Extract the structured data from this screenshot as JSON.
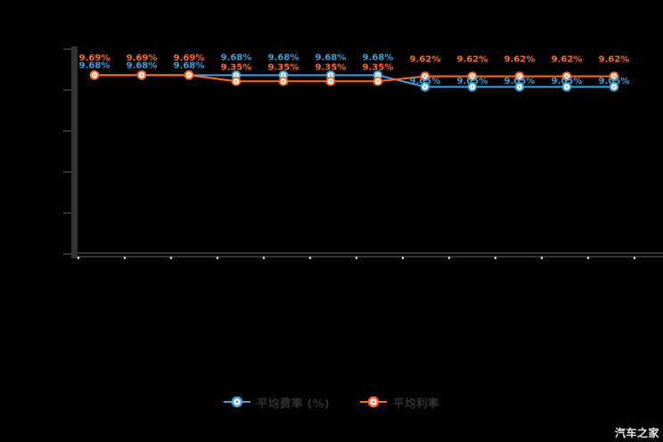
{
  "background": "#000000",
  "watermark": "汽车之家",
  "colors": {
    "blue_series": "#3fa0dc",
    "orange_series": "#ff6a1e",
    "axis": "#333333",
    "legend_text": "#333333",
    "x_tick_dot": "#ffffff",
    "watermark_text": "#e6e6e6",
    "marker_fill": "#ffffff",
    "background": "#000000"
  },
  "legend": {
    "items": [
      {
        "label": "平均费率 (%)",
        "series": "blue"
      },
      {
        "label": "平均利率",
        "series": "orange"
      }
    ]
  },
  "chart_data": {
    "type": "line",
    "title": "",
    "xlabel": "",
    "ylabel": "",
    "points": 12,
    "x_tick_labels_visible": false,
    "y_tick_labels_visible": false,
    "y_tick_count": 6,
    "x_tick_dot_count": 13,
    "ylim": [
      0,
      11.1
    ],
    "grid": false,
    "legend_position": "bottom",
    "label_suffix": "%",
    "series": [
      {
        "name": "平均费率 (%)",
        "color_key": "blue_series",
        "values": [
          9.68,
          9.68,
          9.68,
          9.68,
          9.68,
          9.68,
          9.68,
          9.05,
          9.05,
          9.05,
          9.05,
          9.05
        ]
      },
      {
        "name": "平均利率",
        "color_key": "orange_series",
        "values": [
          9.69,
          9.69,
          9.69,
          9.35,
          9.35,
          9.35,
          9.35,
          9.62,
          9.62,
          9.62,
          9.62,
          9.62
        ]
      }
    ]
  }
}
